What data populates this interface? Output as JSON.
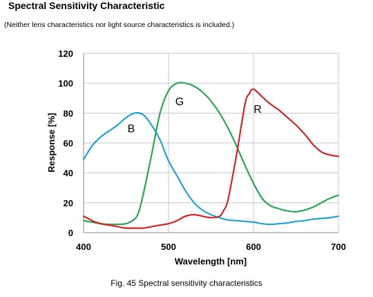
{
  "document": {
    "title": "Spectral Sensitivity Characteristic",
    "note": "(Neither lens characteristics nor light source characteristics is included.)",
    "caption": "Fig. 45 Spectral sensitivity characteristics"
  },
  "chart_data": {
    "type": "line",
    "xlabel": "Wavelength [nm]",
    "ylabel": "Response [%]",
    "xlim": [
      400,
      700
    ],
    "ylim": [
      0,
      120
    ],
    "x_ticks": [
      400,
      500,
      600,
      700
    ],
    "y_ticks": [
      0,
      20,
      40,
      60,
      80,
      100,
      120
    ],
    "grid": true,
    "legend": "none",
    "series": [
      {
        "name": "B",
        "color": "#1ba3d3",
        "x": [
          400,
          410,
          420,
          430,
          440,
          450,
          460,
          470,
          480,
          490,
          500,
          510,
          520,
          530,
          540,
          550,
          560,
          570,
          580,
          590,
          600,
          610,
          620,
          630,
          640,
          650,
          660,
          670,
          680,
          690,
          700
        ],
        "y": [
          49,
          58,
          64,
          68,
          72,
          77,
          80,
          79,
          72,
          62,
          48,
          38,
          28,
          20,
          15,
          12,
          10,
          8.5,
          8,
          7.5,
          7,
          6,
          5.5,
          6,
          6.5,
          7.5,
          8,
          9,
          9.5,
          10,
          11
        ]
      },
      {
        "name": "G",
        "color": "#27a554",
        "x": [
          400,
          410,
          420,
          430,
          440,
          450,
          460,
          465,
          470,
          480,
          490,
          500,
          510,
          520,
          530,
          540,
          550,
          560,
          570,
          580,
          590,
          600,
          610,
          620,
          630,
          640,
          650,
          660,
          670,
          680,
          690,
          700
        ],
        "y": [
          8,
          7,
          6,
          5.5,
          5.5,
          6,
          9,
          14,
          25,
          52,
          80,
          95,
          100,
          100,
          98,
          94,
          88,
          80,
          70,
          58,
          45,
          33,
          23,
          18,
          16,
          14.5,
          14,
          15,
          17,
          20,
          23,
          25
        ]
      },
      {
        "name": "R",
        "color": "#d42323",
        "x": [
          400,
          410,
          420,
          430,
          440,
          450,
          460,
          470,
          480,
          490,
          500,
          510,
          520,
          530,
          540,
          550,
          560,
          565,
          570,
          580,
          590,
          595,
          600,
          610,
          620,
          630,
          640,
          650,
          660,
          670,
          680,
          690,
          700
        ],
        "y": [
          11,
          8,
          6,
          5,
          4,
          3,
          3,
          3,
          4,
          5,
          6,
          8,
          11,
          12,
          11,
          10,
          11,
          15,
          22,
          52,
          86,
          93,
          96,
          91,
          86,
          82,
          77,
          72,
          66,
          59,
          54,
          52,
          51
        ]
      }
    ]
  }
}
